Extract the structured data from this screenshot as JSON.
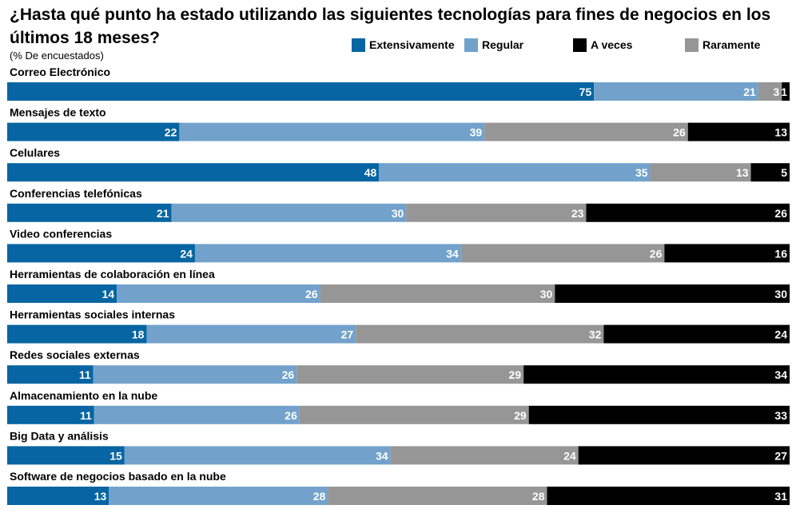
{
  "chart_data": {
    "type": "bar",
    "orientation": "horizontal-stacked-100",
    "title": "¿Hasta qué punto ha estado utilizando las siguientes tecnologías para fines de negocios en los últimos 18 meses?",
    "subtitle": "(% De encuestados)",
    "legend_position": "top-right",
    "categories": [
      "Correo Electrónico",
      "Mensajes de texto",
      "Celulares",
      "Conferencias telefónicas",
      "Video conferencias",
      "Herramientas de colaboración en línea",
      "Herramientas sociales internas",
      "Redes sociales externas",
      "Almacenamiento en la nube",
      "Big Data y análisis",
      "Software de negocios basado en la nube"
    ],
    "series": [
      {
        "name": "Extensivamente",
        "color": "#0665a2",
        "values": [
          75,
          22,
          48,
          21,
          24,
          14,
          18,
          11,
          11,
          15,
          13
        ]
      },
      {
        "name": "Regular",
        "color": "#72a2cc",
        "values": [
          21,
          39,
          35,
          30,
          34,
          26,
          27,
          26,
          26,
          34,
          28
        ]
      },
      {
        "name": "Raramente",
        "color": "#969696",
        "values": [
          3,
          26,
          13,
          23,
          26,
          30,
          32,
          29,
          29,
          24,
          28
        ]
      },
      {
        "name": "A veces",
        "color": "#000000",
        "values": [
          1,
          13,
          5,
          26,
          16,
          30,
          24,
          34,
          33,
          27,
          31
        ]
      }
    ],
    "legend_order": [
      "Extensivamente",
      "Regular",
      "A veces",
      "Raramente"
    ]
  }
}
